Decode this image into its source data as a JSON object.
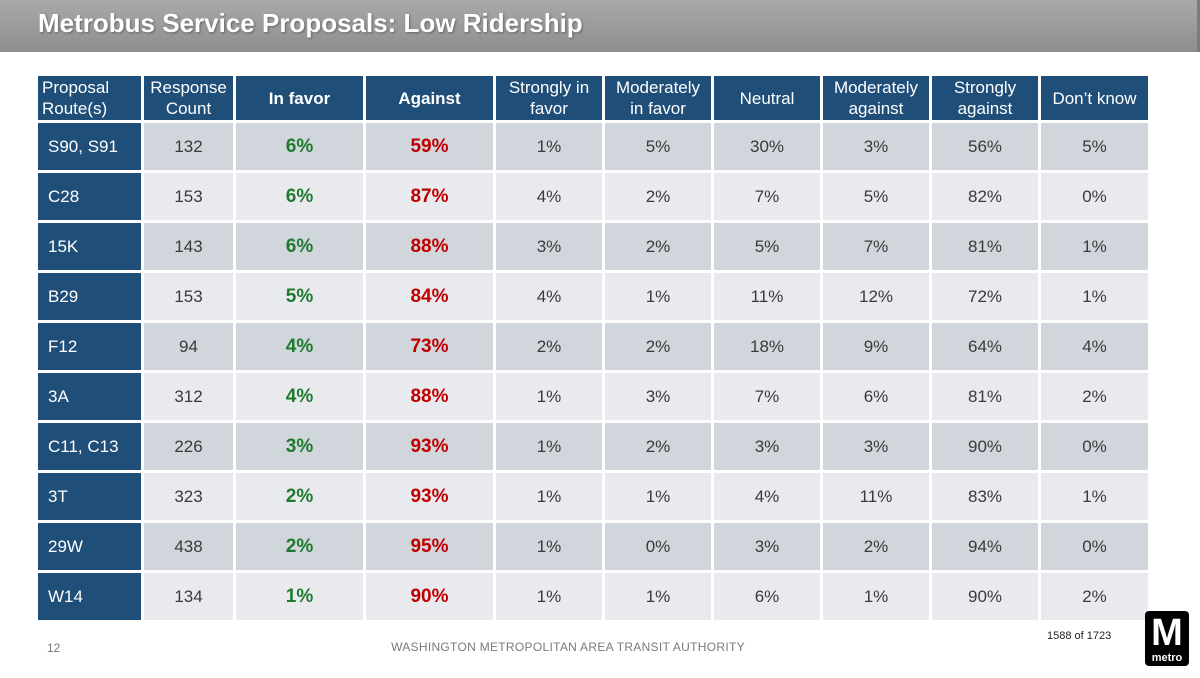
{
  "header": {
    "title": "Metrobus Service Proposals: Low Ridership"
  },
  "table": {
    "columns": [
      "Proposal Route(s)",
      "Response Count",
      "In favor",
      "Against",
      "Strongly in favor",
      "Moderately in favor",
      "Neutral",
      "Moderately against",
      "Strongly against",
      "Don’t know"
    ],
    "rows": [
      [
        "S90, S91",
        "132",
        "6%",
        "59%",
        "1%",
        "5%",
        "30%",
        "3%",
        "56%",
        "5%"
      ],
      [
        "C28",
        "153",
        "6%",
        "87%",
        "4%",
        "2%",
        "7%",
        "5%",
        "82%",
        "0%"
      ],
      [
        "15K",
        "143",
        "6%",
        "88%",
        "3%",
        "2%",
        "5%",
        "7%",
        "81%",
        "1%"
      ],
      [
        "B29",
        "153",
        "5%",
        "84%",
        "4%",
        "1%",
        "11%",
        "12%",
        "72%",
        "1%"
      ],
      [
        "F12",
        "94",
        "4%",
        "73%",
        "2%",
        "2%",
        "18%",
        "9%",
        "64%",
        "4%"
      ],
      [
        "3A",
        "312",
        "4%",
        "88%",
        "1%",
        "3%",
        "7%",
        "6%",
        "81%",
        "2%"
      ],
      [
        "C11, C13",
        "226",
        "3%",
        "93%",
        "1%",
        "2%",
        "3%",
        "3%",
        "90%",
        "0%"
      ],
      [
        "3T",
        "323",
        "2%",
        "93%",
        "1%",
        "1%",
        "4%",
        "11%",
        "83%",
        "1%"
      ],
      [
        "29W",
        "438",
        "2%",
        "95%",
        "1%",
        "0%",
        "3%",
        "2%",
        "94%",
        "0%"
      ],
      [
        "W14",
        "134",
        "1%",
        "90%",
        "1%",
        "1%",
        "6%",
        "1%",
        "90%",
        "2%"
      ]
    ]
  },
  "footer": {
    "page_number": "12",
    "organization": "WASHINGTON METROPOLITAN AREA TRANSIT AUTHORITY",
    "page_count": "1588 of 1723",
    "logo_letter": "M",
    "logo_word": "metro"
  },
  "colors": {
    "header_blue": "#1f4e79",
    "favor_green": "#1f7a2e",
    "against_red": "#c00000",
    "banner_gray": "#9a9a9a"
  }
}
